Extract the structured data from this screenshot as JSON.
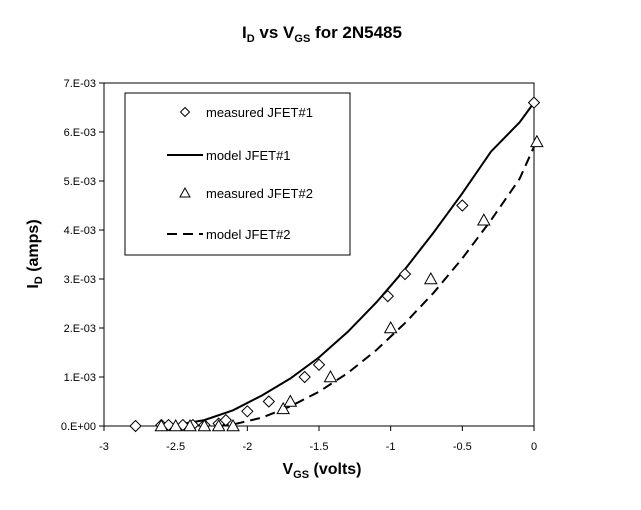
{
  "chart_data": {
    "type": "scatter",
    "title": {
      "main": "I",
      "sub1": "D",
      "mid": " vs V",
      "sub2": "GS",
      "tail": " for 2N5485"
    },
    "xlabel": {
      "main": "V",
      "sub": "GS",
      "tail": " (volts)"
    },
    "ylabel": {
      "main": "I",
      "sub": "D",
      "tail": " (amps)"
    },
    "xlim": [
      -3,
      0
    ],
    "ylim": [
      0,
      0.007
    ],
    "x_ticks": [
      {
        "value": -3,
        "label": "-3"
      },
      {
        "value": -2.5,
        "label": "-2.5"
      },
      {
        "value": -2,
        "label": "-2"
      },
      {
        "value": -1.5,
        "label": "-1.5"
      },
      {
        "value": -1,
        "label": "-1"
      },
      {
        "value": -0.5,
        "label": "-0.5"
      },
      {
        "value": 0,
        "label": "0"
      }
    ],
    "y_ticks": [
      {
        "value": 0,
        "label": "0.E+00"
      },
      {
        "value": 0.001,
        "label": "1.E-03"
      },
      {
        "value": 0.002,
        "label": "2.E-03"
      },
      {
        "value": 0.003,
        "label": "3.E-03"
      },
      {
        "value": 0.004,
        "label": "4.E-03"
      },
      {
        "value": 0.005,
        "label": "5.E-03"
      },
      {
        "value": 0.006,
        "label": "6.E-03"
      },
      {
        "value": 0.007,
        "label": "7.E-03"
      }
    ],
    "grid": false,
    "legend_position": "top-left",
    "series": [
      {
        "name": "measured JFET#1",
        "kind": "markers",
        "marker": "diamond",
        "x": [
          -2.78,
          -2.6,
          -2.55,
          -2.45,
          -2.38,
          -2.3,
          -2.2,
          -2.15,
          -2.0,
          -1.85,
          -1.6,
          -1.5,
          -1.02,
          -0.9,
          -0.5,
          0.0
        ],
        "y": [
          0.0,
          2e-05,
          2e-05,
          2e-05,
          2e-05,
          2e-05,
          5e-05,
          0.00012,
          0.0003,
          0.0005,
          0.001,
          0.00125,
          0.00265,
          0.0031,
          0.0045,
          0.0066
        ]
      },
      {
        "name": "model JFET#1",
        "kind": "line",
        "dash": "solid",
        "x": [
          -2.6,
          -2.5,
          -2.3,
          -2.1,
          -1.9,
          -1.7,
          -1.5,
          -1.3,
          -1.1,
          -0.9,
          -0.7,
          -0.5,
          -0.3,
          -0.1,
          0.0
        ],
        "y": [
          0.0,
          2e-05,
          0.00012,
          0.00032,
          0.00062,
          0.00097,
          0.0014,
          0.00192,
          0.00252,
          0.0032,
          0.00395,
          0.00475,
          0.0056,
          0.0062,
          0.0066
        ]
      },
      {
        "name": "measured JFET#2",
        "kind": "markers",
        "marker": "triangle",
        "x": [
          -2.6,
          -2.5,
          -2.4,
          -2.3,
          -2.2,
          -2.1,
          -1.75,
          -1.7,
          -1.42,
          -1.0,
          -0.72,
          -0.35,
          0.02
        ],
        "y": [
          0.0,
          0.0,
          0.0,
          0.0,
          0.0,
          0.0,
          0.00035,
          0.0005,
          0.001,
          0.002,
          0.003,
          0.0042,
          0.0058
        ]
      },
      {
        "name": "model JFET#2",
        "kind": "line",
        "dash": "dashed",
        "x": [
          -2.2,
          -2.1,
          -1.9,
          -1.7,
          -1.5,
          -1.3,
          -1.1,
          -0.9,
          -0.7,
          -0.5,
          -0.3,
          -0.1,
          0.0
        ],
        "y": [
          0.0,
          3e-05,
          0.00017,
          0.0004,
          0.0007,
          0.00108,
          0.00155,
          0.0021,
          0.00272,
          0.00342,
          0.0042,
          0.00505,
          0.0057
        ]
      }
    ]
  }
}
